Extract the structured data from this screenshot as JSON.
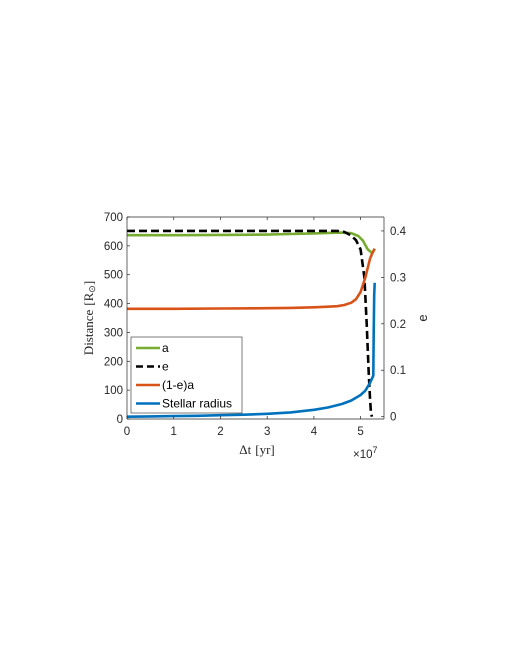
{
  "chart_data": {
    "type": "line",
    "xlabel_main": "Δt",
    "xlabel_unit": "[yr]",
    "ylabel_left_main": "Distance",
    "ylabel_left_unit": "[R",
    "ylabel_left_sun": "⊙",
    "ylabel_left_close": "]",
    "ylabel_right": "e",
    "x_exponent_base": "×10",
    "x_exponent_power": "7",
    "xlim": [
      0,
      5.5
    ],
    "ylim_left": [
      0,
      700
    ],
    "ylim_right": [
      -0.005,
      0.43
    ],
    "xticks": [
      0,
      1,
      2,
      3,
      4,
      5
    ],
    "yticks_left": [
      0,
      100,
      200,
      300,
      400,
      500,
      600,
      700
    ],
    "yticks_right": [
      0,
      0.1,
      0.2,
      0.3,
      0.4
    ],
    "legend_position": "bottom-left",
    "series": [
      {
        "name": "a",
        "axis": "left",
        "color": "#77ac30",
        "dash": "solid",
        "x": [
          0,
          1,
          2,
          3,
          3.5,
          4,
          4.3,
          4.6,
          4.8,
          4.95,
          5.05,
          5.15,
          5.25,
          5.3
        ],
        "y": [
          637,
          637,
          638,
          639,
          641,
          643,
          645,
          646,
          644,
          634,
          618,
          588,
          575,
          590
        ]
      },
      {
        "name": "e",
        "axis": "right",
        "color": "#000000",
        "dash": "dashed",
        "x": [
          0,
          1,
          2,
          3,
          3.5,
          4,
          4.3,
          4.5,
          4.65,
          4.8,
          4.9,
          5.0,
          5.08,
          5.13,
          5.17,
          5.2,
          5.22,
          5.24
        ],
        "y": [
          0.4,
          0.4,
          0.4,
          0.4,
          0.4,
          0.4,
          0.4,
          0.4,
          0.398,
          0.39,
          0.38,
          0.36,
          0.3,
          0.2,
          0.1,
          0.04,
          0.01,
          0.0
        ]
      },
      {
        "name": "(1-e)a",
        "axis": "left",
        "color": "#d95319",
        "dash": "solid",
        "x": [
          0,
          1,
          2,
          3,
          3.5,
          4,
          4.3,
          4.5,
          4.65,
          4.8,
          4.9,
          5.0,
          5.1,
          5.2,
          5.25,
          5.3
        ],
        "y": [
          382,
          382,
          383,
          384,
          385,
          387,
          389,
          391,
          395,
          403,
          415,
          440,
          490,
          555,
          575,
          590
        ]
      },
      {
        "name": "Stellar radius",
        "axis": "left",
        "color": "#0072bd",
        "dash": "solid",
        "x": [
          0,
          0.5,
          1,
          1.5,
          2,
          2.5,
          3,
          3.5,
          4,
          4.3,
          4.6,
          4.8,
          5.0,
          5.1,
          5.2,
          5.27,
          5.28,
          5.29,
          5.3
        ],
        "y": [
          8,
          9,
          10,
          11,
          13,
          15,
          18,
          23,
          32,
          40,
          52,
          64,
          83,
          98,
          125,
          150,
          300,
          430,
          472
        ]
      }
    ]
  }
}
